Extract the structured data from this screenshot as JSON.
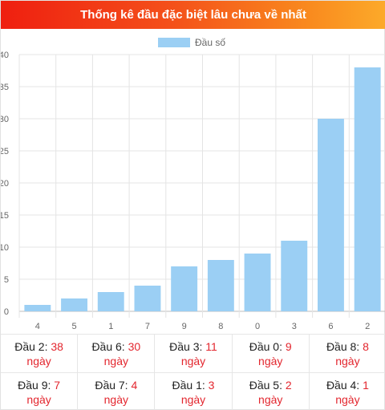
{
  "header": {
    "title": "Thống kê đầu đặc biệt lâu chưa về nhất"
  },
  "legend": {
    "label": "Đầu số"
  },
  "chart_data": {
    "type": "bar",
    "categories": [
      "4",
      "5",
      "1",
      "7",
      "9",
      "8",
      "0",
      "3",
      "6",
      "2"
    ],
    "series": [
      {
        "name": "Đầu số",
        "values": [
          1,
          2,
          3,
          4,
          7,
          8,
          9,
          11,
          30,
          38
        ],
        "color": "#9bcff4"
      }
    ],
    "yticks": [
      "0",
      "5",
      "10",
      "15",
      "20",
      "25",
      "30",
      "35",
      "40"
    ],
    "ylim": [
      0,
      40
    ],
    "grid": true,
    "legend_position": "top-center"
  },
  "stats": {
    "unit": "ngày",
    "rows": [
      [
        {
          "label": "Đầu 2:",
          "value": "38"
        },
        {
          "label": "Đầu 6:",
          "value": "30"
        },
        {
          "label": "Đầu 3:",
          "value": "11"
        },
        {
          "label": "Đầu 0:",
          "value": "9"
        },
        {
          "label": "Đầu 8:",
          "value": "8"
        }
      ],
      [
        {
          "label": "Đầu 9:",
          "value": "7"
        },
        {
          "label": "Đầu 7:",
          "value": "4"
        },
        {
          "label": "Đầu 1:",
          "value": "3"
        },
        {
          "label": "Đầu 5:",
          "value": "2"
        },
        {
          "label": "Đầu 4:",
          "value": "1"
        }
      ]
    ]
  }
}
